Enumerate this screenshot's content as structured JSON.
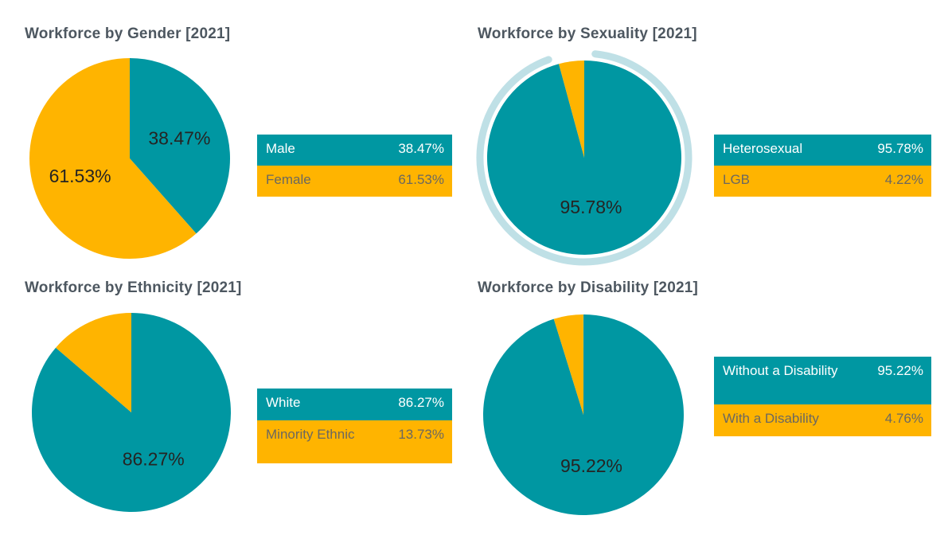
{
  "page": {
    "background": "#FFFFFF"
  },
  "colors": {
    "teal": "#0097A2",
    "orange": "#FFB400",
    "halo_ring": "#BFE0E6",
    "title_text": "#4D5760",
    "pie_label_text": "#252423",
    "legend_teal_text": "#FFFFFF",
    "legend_orange_text": "#6B6860"
  },
  "chart_data": [
    {
      "type": "pie",
      "title": "Workforce by Gender [2021]",
      "legend_position": "right",
      "halo": false,
      "slices": [
        {
          "label": "Male",
          "value": 38.47,
          "display": "38.47%",
          "color_key": "teal"
        },
        {
          "label": "Female",
          "value": 61.53,
          "display": "61.53%",
          "color_key": "orange"
        }
      ]
    },
    {
      "type": "pie",
      "title": "Workforce by Sexuality [2021]",
      "legend_position": "right",
      "halo": true,
      "slices": [
        {
          "label": "Heterosexual",
          "value": 95.78,
          "display": "95.78%",
          "color_key": "teal"
        },
        {
          "label": "LGB",
          "value": 4.22,
          "display": "4.22%",
          "color_key": "orange"
        }
      ]
    },
    {
      "type": "pie",
      "title": "Workforce by Ethnicity [2021]",
      "legend_position": "right",
      "halo": false,
      "slices": [
        {
          "label": "White",
          "value": 86.27,
          "display": "86.27%",
          "color_key": "teal"
        },
        {
          "label": "Minority Ethnic",
          "value": 13.73,
          "display": "13.73%",
          "color_key": "orange"
        }
      ]
    },
    {
      "type": "pie",
      "title": "Workforce by Disability [2021]",
      "legend_position": "right",
      "halo": false,
      "slices": [
        {
          "label": "Without a Disability",
          "value": 95.22,
          "display": "95.22%",
          "color_key": "teal"
        },
        {
          "label": "With a Disability",
          "value": 4.76,
          "display": "4.76%",
          "color_key": "orange"
        }
      ]
    }
  ]
}
